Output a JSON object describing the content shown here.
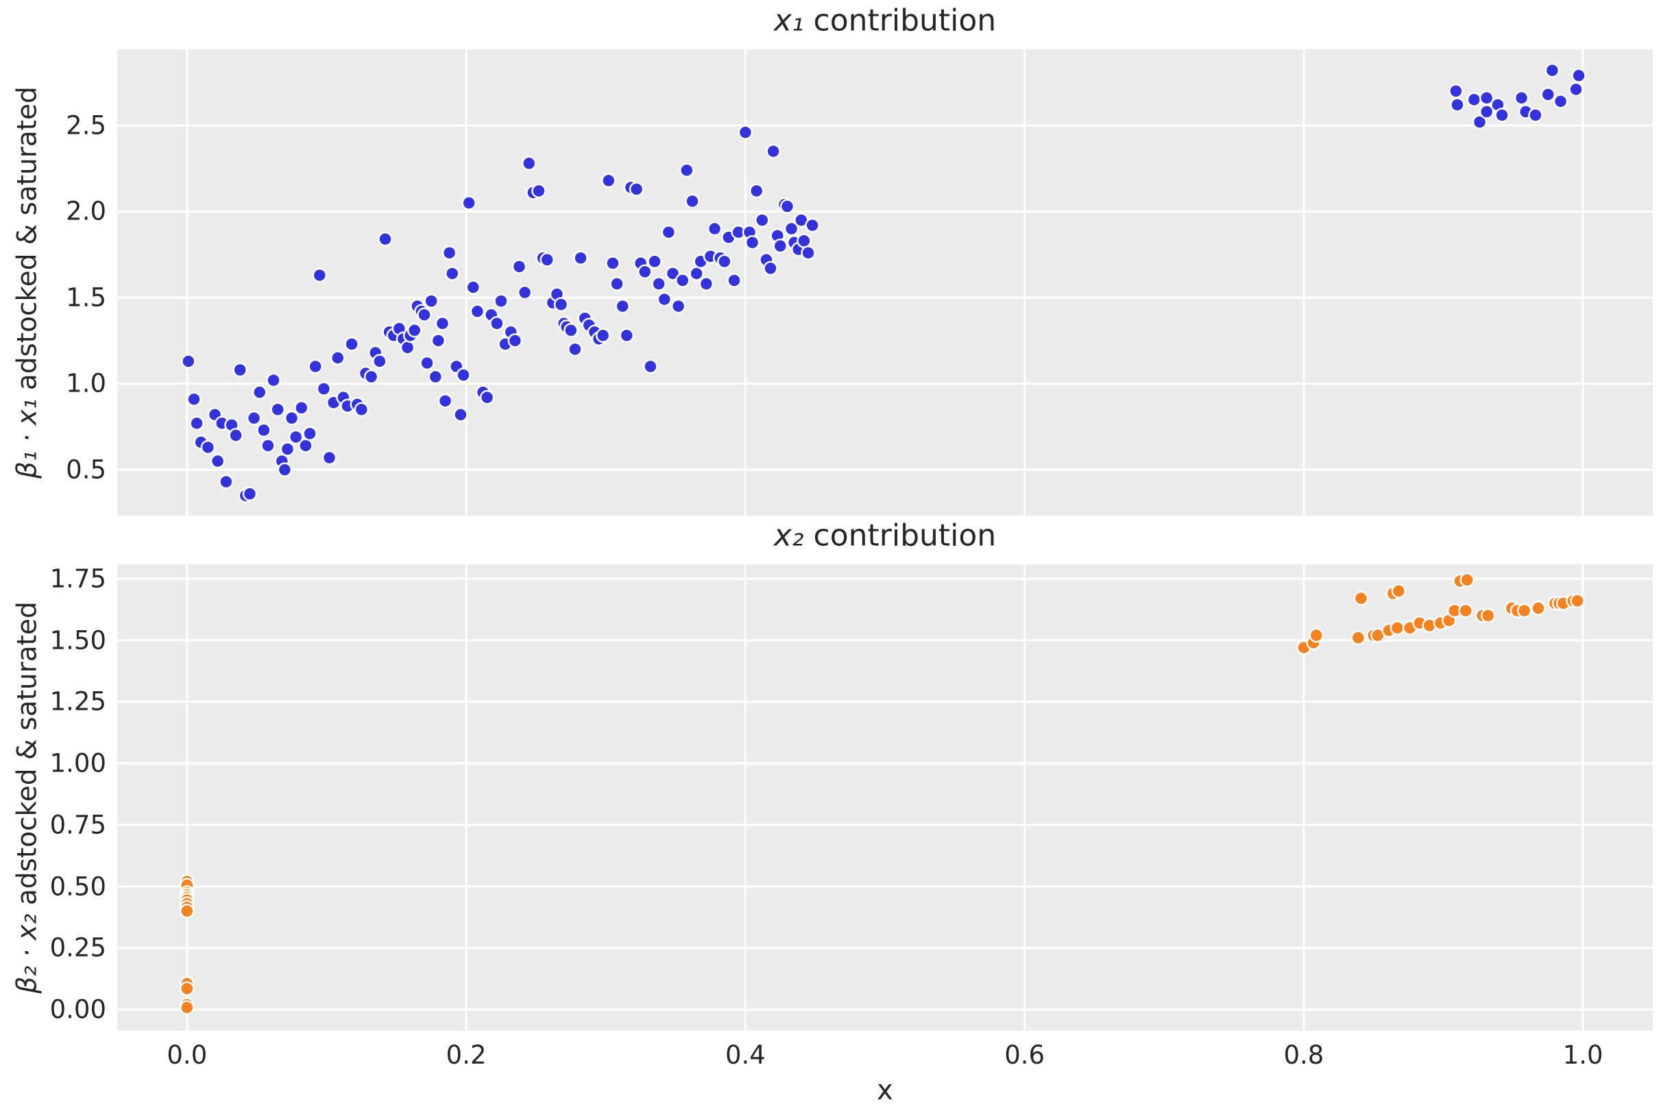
{
  "figure": {
    "background": "#ffffff",
    "axes_background": "#ebebeb",
    "grid_color": "#ffffff",
    "text_color": "#262626"
  },
  "chart_data": [
    {
      "type": "scatter",
      "title": {
        "variable": "x₁",
        "rest": " contribution"
      },
      "ylabel": {
        "math": "β₁ · x₁",
        "rest": " adstocked & saturated"
      },
      "xlabel": "",
      "point_color": "#3333dd",
      "point_edge_color": "#ffffff",
      "grid": true,
      "xlim": [
        -0.05,
        1.05
      ],
      "ylim": [
        0.233,
        2.942
      ],
      "xticks": {
        "values": [
          0.0,
          0.2,
          0.4,
          0.6,
          0.8,
          1.0
        ],
        "labels": []
      },
      "yticks": {
        "values": [
          2.5,
          2.0,
          1.5,
          1.0,
          0.5
        ],
        "labels": [
          "2.5",
          "2.0",
          "1.5",
          "1.0",
          "0.5"
        ]
      },
      "points": [
        [
          0.001,
          1.13
        ],
        [
          0.005,
          0.91
        ],
        [
          0.007,
          0.77
        ],
        [
          0.01,
          0.66
        ],
        [
          0.015,
          0.63
        ],
        [
          0.02,
          0.82
        ],
        [
          0.022,
          0.55
        ],
        [
          0.025,
          0.77
        ],
        [
          0.028,
          0.43
        ],
        [
          0.032,
          0.76
        ],
        [
          0.035,
          0.7
        ],
        [
          0.038,
          1.08
        ],
        [
          0.042,
          0.35
        ],
        [
          0.045,
          0.36
        ],
        [
          0.048,
          0.8
        ],
        [
          0.052,
          0.95
        ],
        [
          0.055,
          0.73
        ],
        [
          0.058,
          0.64
        ],
        [
          0.062,
          1.02
        ],
        [
          0.065,
          0.85
        ],
        [
          0.068,
          0.55
        ],
        [
          0.07,
          0.5
        ],
        [
          0.072,
          0.62
        ],
        [
          0.075,
          0.8
        ],
        [
          0.078,
          0.69
        ],
        [
          0.082,
          0.86
        ],
        [
          0.085,
          0.64
        ],
        [
          0.088,
          0.71
        ],
        [
          0.092,
          1.1
        ],
        [
          0.095,
          1.63
        ],
        [
          0.098,
          0.97
        ],
        [
          0.102,
          0.57
        ],
        [
          0.105,
          0.89
        ],
        [
          0.108,
          1.15
        ],
        [
          0.112,
          0.92
        ],
        [
          0.115,
          0.87
        ],
        [
          0.118,
          1.23
        ],
        [
          0.122,
          0.88
        ],
        [
          0.125,
          0.85
        ],
        [
          0.128,
          1.06
        ],
        [
          0.132,
          1.04
        ],
        [
          0.135,
          1.18
        ],
        [
          0.138,
          1.13
        ],
        [
          0.142,
          1.84
        ],
        [
          0.145,
          1.3
        ],
        [
          0.148,
          1.28
        ],
        [
          0.152,
          1.32
        ],
        [
          0.155,
          1.26
        ],
        [
          0.158,
          1.21
        ],
        [
          0.16,
          1.28
        ],
        [
          0.163,
          1.31
        ],
        [
          0.165,
          1.45
        ],
        [
          0.168,
          1.42
        ],
        [
          0.17,
          1.4
        ],
        [
          0.172,
          1.12
        ],
        [
          0.175,
          1.48
        ],
        [
          0.178,
          1.04
        ],
        [
          0.18,
          1.25
        ],
        [
          0.183,
          1.35
        ],
        [
          0.185,
          0.9
        ],
        [
          0.188,
          1.76
        ],
        [
          0.19,
          1.64
        ],
        [
          0.193,
          1.1
        ],
        [
          0.196,
          0.82
        ],
        [
          0.198,
          1.05
        ],
        [
          0.202,
          2.05
        ],
        [
          0.205,
          1.56
        ],
        [
          0.208,
          1.42
        ],
        [
          0.212,
          0.95
        ],
        [
          0.215,
          0.92
        ],
        [
          0.218,
          1.4
        ],
        [
          0.222,
          1.35
        ],
        [
          0.225,
          1.48
        ],
        [
          0.228,
          1.23
        ],
        [
          0.232,
          1.3
        ],
        [
          0.235,
          1.25
        ],
        [
          0.238,
          1.68
        ],
        [
          0.242,
          1.53
        ],
        [
          0.245,
          2.28
        ],
        [
          0.248,
          2.11
        ],
        [
          0.252,
          2.12
        ],
        [
          0.255,
          1.73
        ],
        [
          0.258,
          1.72
        ],
        [
          0.262,
          1.47
        ],
        [
          0.265,
          1.52
        ],
        [
          0.268,
          1.46
        ],
        [
          0.27,
          1.35
        ],
        [
          0.272,
          1.33
        ],
        [
          0.275,
          1.31
        ],
        [
          0.278,
          1.2
        ],
        [
          0.282,
          1.73
        ],
        [
          0.285,
          1.38
        ],
        [
          0.288,
          1.34
        ],
        [
          0.292,
          1.3
        ],
        [
          0.295,
          1.26
        ],
        [
          0.298,
          1.28
        ],
        [
          0.302,
          2.18
        ],
        [
          0.305,
          1.7
        ],
        [
          0.308,
          1.58
        ],
        [
          0.312,
          1.45
        ],
        [
          0.315,
          1.28
        ],
        [
          0.318,
          2.14
        ],
        [
          0.322,
          2.13
        ],
        [
          0.325,
          1.7
        ],
        [
          0.328,
          1.65
        ],
        [
          0.332,
          1.1
        ],
        [
          0.335,
          1.71
        ],
        [
          0.338,
          1.58
        ],
        [
          0.342,
          1.49
        ],
        [
          0.345,
          1.88
        ],
        [
          0.348,
          1.64
        ],
        [
          0.352,
          1.45
        ],
        [
          0.355,
          1.6
        ],
        [
          0.358,
          2.24
        ],
        [
          0.362,
          2.06
        ],
        [
          0.365,
          1.64
        ],
        [
          0.368,
          1.71
        ],
        [
          0.372,
          1.58
        ],
        [
          0.375,
          1.74
        ],
        [
          0.378,
          1.9
        ],
        [
          0.382,
          1.73
        ],
        [
          0.385,
          1.71
        ],
        [
          0.388,
          1.85
        ],
        [
          0.392,
          1.6
        ],
        [
          0.395,
          1.88
        ],
        [
          0.4,
          2.46
        ],
        [
          0.403,
          1.88
        ],
        [
          0.405,
          1.82
        ],
        [
          0.408,
          2.12
        ],
        [
          0.412,
          1.95
        ],
        [
          0.415,
          1.72
        ],
        [
          0.418,
          1.67
        ],
        [
          0.42,
          2.35
        ],
        [
          0.423,
          1.86
        ],
        [
          0.425,
          1.8
        ],
        [
          0.428,
          2.04
        ],
        [
          0.43,
          2.03
        ],
        [
          0.433,
          1.9
        ],
        [
          0.435,
          1.82
        ],
        [
          0.438,
          1.78
        ],
        [
          0.44,
          1.95
        ],
        [
          0.442,
          1.83
        ],
        [
          0.445,
          1.76
        ],
        [
          0.448,
          1.92
        ],
        [
          0.909,
          2.7
        ],
        [
          0.91,
          2.62
        ],
        [
          0.922,
          2.65
        ],
        [
          0.926,
          2.52
        ],
        [
          0.931,
          2.66
        ],
        [
          0.931,
          2.58
        ],
        [
          0.939,
          2.62
        ],
        [
          0.942,
          2.56
        ],
        [
          0.956,
          2.66
        ],
        [
          0.959,
          2.58
        ],
        [
          0.966,
          2.56
        ],
        [
          0.975,
          2.68
        ],
        [
          0.978,
          2.82
        ],
        [
          0.984,
          2.64
        ],
        [
          0.995,
          2.71
        ],
        [
          0.997,
          2.79
        ]
      ]
    },
    {
      "type": "scatter",
      "title": {
        "variable": "x₂",
        "rest": " contribution"
      },
      "ylabel": {
        "math": "β₂ · x₂",
        "rest": " adstocked & saturated"
      },
      "xlabel": "x",
      "point_color": "#f5811f",
      "point_edge_color": "#ffffff",
      "grid": true,
      "xlim": [
        -0.05,
        1.05
      ],
      "ylim": [
        -0.086,
        1.808
      ],
      "xticks": {
        "values": [
          0.0,
          0.2,
          0.4,
          0.6,
          0.8,
          1.0
        ],
        "labels": [
          "0.0",
          "0.2",
          "0.4",
          "0.6",
          "0.8",
          "1.0"
        ]
      },
      "yticks": {
        "values": [
          1.75,
          1.5,
          1.25,
          1.0,
          0.75,
          0.5,
          0.25,
          0.0
        ],
        "labels": [
          "1.75",
          "1.50",
          "1.25",
          "1.00",
          "0.75",
          "0.50",
          "0.25",
          "0.00"
        ]
      },
      "points": [
        [
          0.0,
          0.52
        ],
        [
          0.0,
          0.505
        ],
        [
          0.0,
          0.475
        ],
        [
          0.0,
          0.465
        ],
        [
          0.0,
          0.455
        ],
        [
          0.0,
          0.445
        ],
        [
          0.0,
          0.43
        ],
        [
          0.0,
          0.415
        ],
        [
          0.0,
          0.4
        ],
        [
          0.0,
          0.105
        ],
        [
          0.0,
          0.085
        ],
        [
          0.0,
          0.02
        ],
        [
          0.0,
          0.008
        ],
        [
          0.8,
          1.47
        ],
        [
          0.807,
          1.49
        ],
        [
          0.809,
          1.52
        ],
        [
          0.839,
          1.51
        ],
        [
          0.841,
          1.67
        ],
        [
          0.85,
          1.52
        ],
        [
          0.853,
          1.52
        ],
        [
          0.861,
          1.54
        ],
        [
          0.864,
          1.69
        ],
        [
          0.868,
          1.7
        ],
        [
          0.867,
          1.55
        ],
        [
          0.876,
          1.55
        ],
        [
          0.883,
          1.57
        ],
        [
          0.89,
          1.56
        ],
        [
          0.898,
          1.57
        ],
        [
          0.904,
          1.58
        ],
        [
          0.908,
          1.62
        ],
        [
          0.912,
          1.74
        ],
        [
          0.917,
          1.745
        ],
        [
          0.916,
          1.62
        ],
        [
          0.928,
          1.6
        ],
        [
          0.932,
          1.6
        ],
        [
          0.949,
          1.63
        ],
        [
          0.953,
          1.62
        ],
        [
          0.958,
          1.62
        ],
        [
          0.968,
          1.63
        ],
        [
          0.98,
          1.65
        ],
        [
          0.983,
          1.65
        ],
        [
          0.986,
          1.65
        ],
        [
          0.993,
          1.66
        ],
        [
          0.996,
          1.66
        ]
      ]
    }
  ]
}
